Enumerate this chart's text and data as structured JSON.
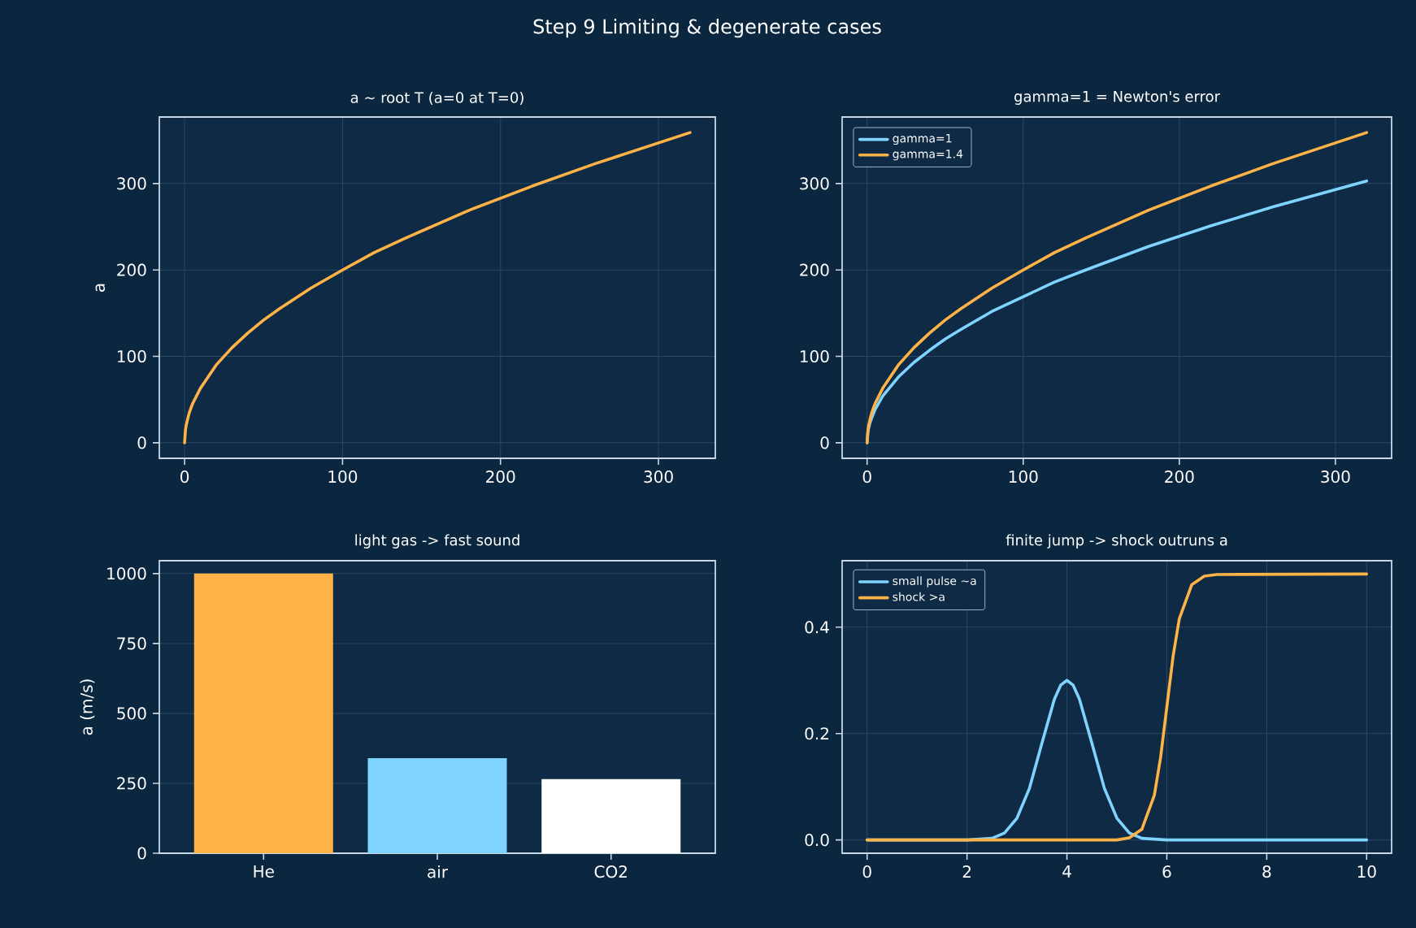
{
  "chart_data": [
    {
      "type": "other",
      "title": "Step 9  Limiting & degenerate cases"
    },
    {
      "type": "line",
      "title": "a ~ root T (a=0 at T=0)",
      "ylabel": "a",
      "series": [
        {
          "color": "#ffb347",
          "x": [
            0,
            0.5,
            1,
            2,
            3,
            5,
            10,
            20,
            30,
            40,
            50,
            60,
            80,
            100,
            120,
            140,
            180,
            220,
            260,
            300,
            320
          ],
          "values": [
            0,
            14,
            20,
            28,
            35,
            45,
            63,
            90,
            110,
            127,
            142,
            155,
            179,
            200,
            220,
            237,
            269,
            297,
            323,
            347,
            359
          ]
        }
      ],
      "xlim": [
        -16,
        336
      ],
      "ylim": [
        -18,
        377
      ],
      "xticks": [
        0,
        100,
        200,
        300
      ],
      "yticks": [
        0,
        100,
        200,
        300
      ],
      "grid": true
    },
    {
      "type": "line",
      "title": "gamma=1 = Newton's error",
      "series": [
        {
          "name": "gamma=1",
          "color": "#7fd4ff",
          "x": [
            0,
            0.5,
            1,
            2,
            3,
            5,
            10,
            20,
            30,
            40,
            50,
            60,
            80,
            100,
            120,
            140,
            180,
            220,
            260,
            300,
            320
          ],
          "values": [
            0,
            12,
            17,
            24,
            29,
            38,
            54,
            76,
            93,
            107,
            120,
            131,
            152,
            169,
            186,
            200,
            227,
            251,
            273,
            293,
            303
          ]
        },
        {
          "name": "gamma=1.4",
          "color": "#ffb347",
          "x": [
            0,
            0.5,
            1,
            2,
            3,
            5,
            10,
            20,
            30,
            40,
            50,
            60,
            80,
            100,
            120,
            140,
            180,
            220,
            260,
            300,
            320
          ],
          "values": [
            0,
            14,
            20,
            28,
            35,
            45,
            63,
            90,
            110,
            127,
            142,
            155,
            179,
            200,
            220,
            237,
            269,
            297,
            323,
            347,
            359
          ]
        }
      ],
      "xlim": [
        -16,
        336
      ],
      "ylim": [
        -18,
        377
      ],
      "xticks": [
        0,
        100,
        200,
        300
      ],
      "yticks": [
        0,
        100,
        200,
        300
      ],
      "grid": true,
      "legend": "top left"
    },
    {
      "type": "bar",
      "title": "light gas -> fast sound",
      "ylabel": "a (m/s)",
      "categories": [
        "He",
        "air",
        "CO2"
      ],
      "values": [
        1000,
        340,
        265
      ],
      "colors": [
        "#ffb347",
        "#7fd4ff",
        "#ffffff"
      ],
      "ylim": [
        0,
        1046
      ],
      "yticks": [
        0,
        250,
        500,
        750,
        1000
      ],
      "grid": "y"
    },
    {
      "type": "line",
      "title": "finite jump -> shock outruns a",
      "series": [
        {
          "name": "small pulse ~a",
          "color": "#7fd4ff",
          "x": [
            0,
            1.5,
            2,
            2.5,
            2.75,
            3,
            3.25,
            3.5,
            3.75,
            3.875,
            4,
            4.125,
            4.25,
            4.5,
            4.75,
            5,
            5.25,
            5.5,
            6,
            7,
            10
          ],
          "values": [
            0,
            0,
            0,
            0.003,
            0.013,
            0.041,
            0.097,
            0.182,
            0.265,
            0.291,
            0.3,
            0.291,
            0.265,
            0.182,
            0.097,
            0.041,
            0.013,
            0.003,
            0,
            0,
            0
          ]
        },
        {
          "name": "shock >a",
          "color": "#ffb347",
          "x": [
            0,
            5,
            5.25,
            5.5,
            5.75,
            5.875,
            6,
            6.125,
            6.25,
            6.5,
            6.75,
            7,
            10
          ],
          "values": [
            0,
            0,
            0.004,
            0.02,
            0.084,
            0.155,
            0.25,
            0.345,
            0.416,
            0.48,
            0.496,
            0.499,
            0.5
          ]
        }
      ],
      "xlim": [
        -0.5,
        10.5
      ],
      "ylim": [
        -0.025,
        0.525
      ],
      "xticks": [
        0,
        2,
        4,
        6,
        8,
        10
      ],
      "yticks": [
        {
          "value": 0,
          "label": "0.0"
        },
        {
          "value": 0.2,
          "label": "0.2"
        },
        {
          "value": 0.4,
          "label": "0.4"
        }
      ],
      "grid": true,
      "legend": "top left"
    }
  ]
}
